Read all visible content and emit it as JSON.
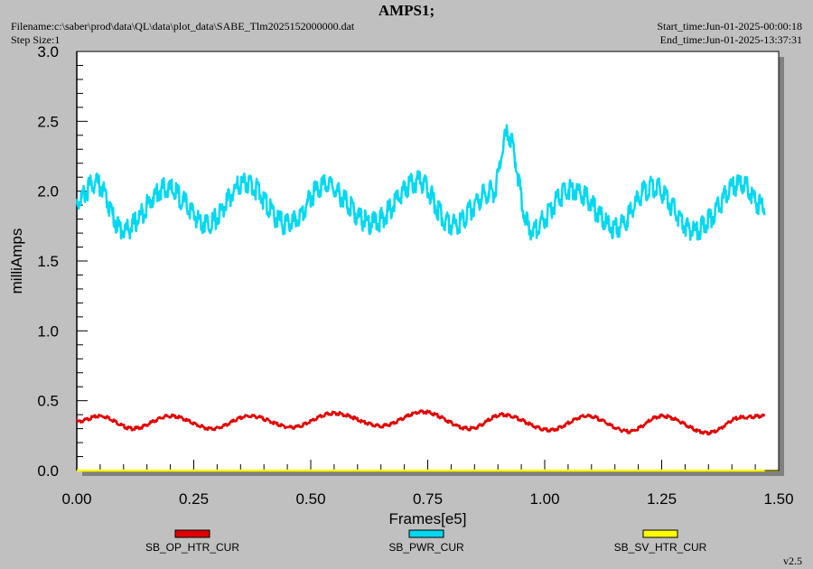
{
  "header": {
    "title": "AMPS1;",
    "filename": "Filename:c:\\saber\\prod\\data\\QL\\data\\plot_data\\SABE_Tlm2025152000000.dat",
    "step_size": "Step Size:1",
    "start_time": "Start_time:Jun-01-2025-00:00:18",
    "end_time": "End_time:Jun-01-2025-13:37:31"
  },
  "version": "v2.5",
  "colors": {
    "background": "#c0c0c0",
    "plot_area": "#ffffff",
    "SB_OP_HTR_CUR": "#e00000",
    "SB_PWR_CUR": "#00d8f0",
    "SB_SV_HTR_CUR": "#ffff00",
    "x_axis_line": "#808000"
  },
  "chart_data": {
    "type": "line",
    "title": "AMPS1;",
    "xlabel": "Frames[e5]",
    "ylabel": "milliAmps",
    "xlim": [
      0.0,
      1.5
    ],
    "ylim": [
      0.0,
      3.0
    ],
    "xticks": [
      "0.00",
      "0.25",
      "0.50",
      "0.75",
      "1.00",
      "1.25",
      "1.50"
    ],
    "yticks": [
      "0.0",
      "0.5",
      "1.0",
      "1.5",
      "2.0",
      "2.5",
      "3.0"
    ],
    "grid": false,
    "legend_position": "bottom",
    "series": [
      {
        "name": "SB_OP_HTR_CUR",
        "x": [
          0.0,
          0.05,
          0.12,
          0.2,
          0.29,
          0.37,
          0.46,
          0.55,
          0.65,
          0.74,
          0.84,
          0.91,
          1.01,
          1.09,
          1.18,
          1.25,
          1.35,
          1.42,
          1.47
        ],
        "y": [
          0.35,
          0.39,
          0.3,
          0.39,
          0.3,
          0.39,
          0.31,
          0.41,
          0.32,
          0.42,
          0.3,
          0.4,
          0.29,
          0.39,
          0.28,
          0.39,
          0.27,
          0.38,
          0.39
        ]
      },
      {
        "name": "SB_PWR_CUR",
        "x": [
          0.0,
          0.04,
          0.1,
          0.19,
          0.28,
          0.36,
          0.45,
          0.53,
          0.63,
          0.73,
          0.8,
          0.89,
          0.92,
          0.97,
          1.06,
          1.15,
          1.23,
          1.32,
          1.42,
          1.47
        ],
        "y": [
          1.93,
          2.06,
          1.72,
          2.02,
          1.77,
          2.06,
          1.76,
          2.04,
          1.77,
          2.07,
          1.76,
          2.0,
          2.4,
          1.73,
          2.02,
          1.74,
          2.03,
          1.72,
          2.05,
          1.88
        ]
      },
      {
        "name": "SB_SV_HTR_CUR",
        "x": [
          0.0,
          1.47
        ],
        "y": [
          0.0,
          0.0
        ]
      }
    ]
  }
}
